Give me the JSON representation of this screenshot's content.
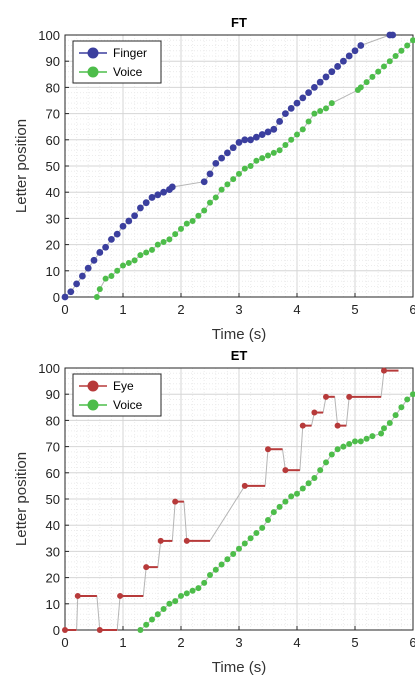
{
  "chart_data": [
    {
      "type": "line",
      "title": "FT",
      "xlabel": "Time (s)",
      "ylabel": "Letter position",
      "xlim": [
        0,
        6
      ],
      "ylim": [
        0,
        100
      ],
      "xticks": [
        "0",
        "1",
        "2",
        "3",
        "4",
        "5",
        "6"
      ],
      "yticks": [
        "0",
        "10",
        "20",
        "30",
        "40",
        "50",
        "60",
        "70",
        "80",
        "90",
        "100"
      ],
      "grid": "on (major and minor)",
      "legend_position": "top-left",
      "series": [
        {
          "name": "Finger",
          "color": "#3b3f9e",
          "x": [
            0,
            0.1,
            0.2,
            0.3,
            0.4,
            0.5,
            0.6,
            0.7,
            0.8,
            0.9,
            1.0,
            1.1,
            1.2,
            1.3,
            1.4,
            1.5,
            1.6,
            1.7,
            1.8,
            1.85,
            2.4,
            2.5,
            2.6,
            2.7,
            2.8,
            2.9,
            3.0,
            3.1,
            3.2,
            3.3,
            3.4,
            3.5,
            3.6,
            3.7,
            3.8,
            3.9,
            4.0,
            4.1,
            4.2,
            4.3,
            4.4,
            4.5,
            4.6,
            4.7,
            4.8,
            4.9,
            5.0,
            5.1,
            5.6,
            5.65
          ],
          "y": [
            0,
            2,
            5,
            8,
            11,
            14,
            17,
            19,
            22,
            24,
            27,
            29,
            31,
            34,
            36,
            38,
            39,
            40,
            41,
            42,
            44,
            47,
            51,
            53,
            55,
            57,
            59,
            60,
            60,
            61,
            62,
            63,
            64,
            67,
            70,
            72,
            74,
            76,
            78,
            80,
            82,
            84,
            86,
            88,
            90,
            92,
            94,
            96,
            100,
            100
          ]
        },
        {
          "name": "Voice",
          "color": "#4dbd4a",
          "x": [
            0.55,
            0.6,
            0.7,
            0.8,
            0.9,
            1.0,
            1.1,
            1.2,
            1.3,
            1.4,
            1.5,
            1.6,
            1.7,
            1.8,
            1.9,
            2.0,
            2.1,
            2.2,
            2.3,
            2.4,
            2.5,
            2.6,
            2.7,
            2.8,
            2.9,
            3.0,
            3.1,
            3.2,
            3.3,
            3.4,
            3.5,
            3.6,
            3.7,
            3.8,
            3.9,
            4.0,
            4.1,
            4.2,
            4.3,
            4.4,
            4.5,
            4.6,
            5.05,
            5.1,
            5.2,
            5.3,
            5.4,
            5.5,
            5.6,
            5.7,
            5.8,
            5.9,
            6.0
          ],
          "y": [
            0,
            3,
            7,
            8,
            10,
            12,
            13,
            14,
            16,
            17,
            18,
            20,
            21,
            22,
            24,
            26,
            28,
            29,
            31,
            33,
            36,
            38,
            41,
            43,
            45,
            47,
            49,
            50,
            52,
            53,
            54,
            55,
            56,
            58,
            60,
            62,
            64,
            67,
            70,
            71,
            72,
            74,
            79,
            80,
            82,
            84,
            86,
            88,
            90,
            92,
            94,
            96,
            98
          ]
        }
      ]
    },
    {
      "type": "line",
      "title": "ET",
      "xlabel": "Time (s)",
      "ylabel": "Letter position",
      "xlim": [
        0,
        6
      ],
      "ylim": [
        0,
        100
      ],
      "xticks": [
        "0",
        "1",
        "2",
        "3",
        "4",
        "5",
        "6"
      ],
      "yticks": [
        "0",
        "10",
        "20",
        "30",
        "40",
        "50",
        "60",
        "70",
        "80",
        "90",
        "100"
      ],
      "grid": "on (major and minor)",
      "legend_position": "top-left",
      "series": [
        {
          "name": "Eye",
          "color": "#b73a3a",
          "segments": [
            {
              "x": [
                0,
                0.2
              ],
              "y": 0
            },
            {
              "x": [
                0.22,
                0.55
              ],
              "y": 13
            },
            {
              "x": [
                0.6,
                0.9
              ],
              "y": 0
            },
            {
              "x": [
                0.95,
                1.35
              ],
              "y": 13
            },
            {
              "x": [
                1.4,
                1.6
              ],
              "y": 24
            },
            {
              "x": [
                1.65,
                1.85
              ],
              "y": 34
            },
            {
              "x": [
                1.9,
                2.05
              ],
              "y": 49
            },
            {
              "x": [
                2.1,
                2.5
              ],
              "y": 34
            },
            {
              "x": [
                3.1,
                3.45
              ],
              "y": 55
            },
            {
              "x": [
                3.5,
                3.75
              ],
              "y": 69
            },
            {
              "x": [
                3.8,
                4.05
              ],
              "y": 61
            },
            {
              "x": [
                4.1,
                4.25
              ],
              "y": 78
            },
            {
              "x": [
                4.3,
                4.45
              ],
              "y": 83
            },
            {
              "x": [
                4.5,
                4.65
              ],
              "y": 89
            },
            {
              "x": [
                4.7,
                4.85
              ],
              "y": 78
            },
            {
              "x": [
                4.9,
                5.45
              ],
              "y": 89
            },
            {
              "x": [
                5.5,
                5.75
              ],
              "y": 99
            }
          ]
        },
        {
          "name": "Voice",
          "color": "#4dbd4a",
          "x": [
            1.3,
            1.4,
            1.5,
            1.6,
            1.7,
            1.8,
            1.9,
            2.0,
            2.1,
            2.2,
            2.3,
            2.4,
            2.5,
            2.6,
            2.7,
            2.8,
            2.9,
            3.0,
            3.1,
            3.2,
            3.3,
            3.4,
            3.5,
            3.6,
            3.7,
            3.8,
            3.9,
            4.0,
            4.1,
            4.2,
            4.3,
            4.4,
            4.5,
            4.6,
            4.7,
            4.8,
            4.9,
            5.0,
            5.1,
            5.2,
            5.3,
            5.45,
            5.5,
            5.6,
            5.7,
            5.8,
            5.9,
            6.0
          ],
          "y": [
            0,
            2,
            4,
            6,
            8,
            10,
            11,
            13,
            14,
            15,
            16,
            18,
            21,
            23,
            25,
            27,
            29,
            31,
            33,
            35,
            37,
            39,
            42,
            45,
            47,
            49,
            51,
            52,
            54,
            56,
            58,
            61,
            64,
            67,
            69,
            70,
            71,
            72,
            72,
            73,
            74,
            75,
            77,
            79,
            82,
            85,
            88,
            90
          ]
        }
      ]
    }
  ]
}
